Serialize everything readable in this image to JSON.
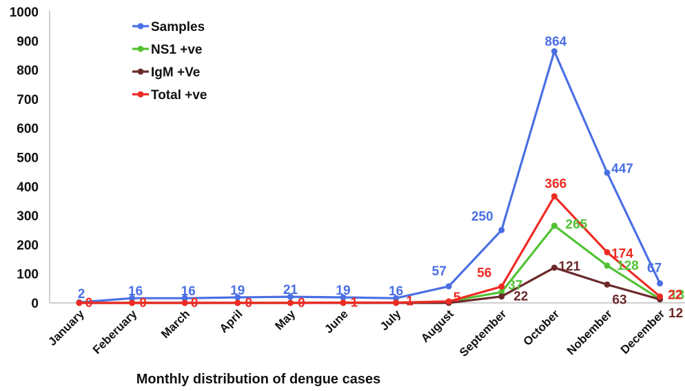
{
  "chart_data": {
    "type": "line",
    "title": "",
    "xlabel": "Monthly distribution of dengue cases",
    "ylabel": "",
    "ylim": [
      0,
      1000
    ],
    "yticks": [
      0,
      100,
      200,
      300,
      400,
      500,
      600,
      700,
      800,
      900,
      1000
    ],
    "categories": [
      "January",
      "Feberuary",
      "March",
      "April",
      "May",
      "June",
      "July",
      "August",
      "September",
      "October",
      "Nobember",
      "December"
    ],
    "legend_position": "top-left",
    "series": [
      {
        "name": "Samples",
        "color": "#4a6fe3",
        "values": [
          2,
          16,
          16,
          19,
          21,
          19,
          16,
          57,
          250,
          864,
          447,
          67
        ],
        "labels": [
          "2",
          "16",
          "16",
          "19",
          "21",
          "19",
          "16",
          "57",
          "250",
          "864",
          "447",
          "67"
        ]
      },
      {
        "name": "NS1 +ve",
        "color": "#52c234",
        "values": [
          0,
          0,
          0,
          0,
          0,
          1,
          1,
          5,
          37,
          265,
          128,
          13
        ],
        "labels": [
          "",
          "",
          "",
          "",
          "",
          "",
          "",
          "",
          "37",
          "265",
          "128",
          "13"
        ]
      },
      {
        "name": "IgM +Ve",
        "color": "#6b2a2a",
        "values": [
          0,
          0,
          0,
          0,
          0,
          0,
          0,
          0,
          22,
          121,
          63,
          12
        ],
        "labels": [
          "",
          "",
          "",
          "",
          "",
          "",
          "",
          "",
          "22",
          "121",
          "63",
          "12"
        ]
      },
      {
        "name": "Total +ve",
        "color": "#ee2a24",
        "values": [
          0,
          0,
          0,
          0,
          0,
          1,
          1,
          5,
          56,
          366,
          174,
          22
        ],
        "labels": [
          "0",
          "0",
          "0",
          "0",
          "0",
          "1",
          "1",
          "5",
          "56",
          "366",
          "174",
          "22"
        ]
      }
    ]
  }
}
